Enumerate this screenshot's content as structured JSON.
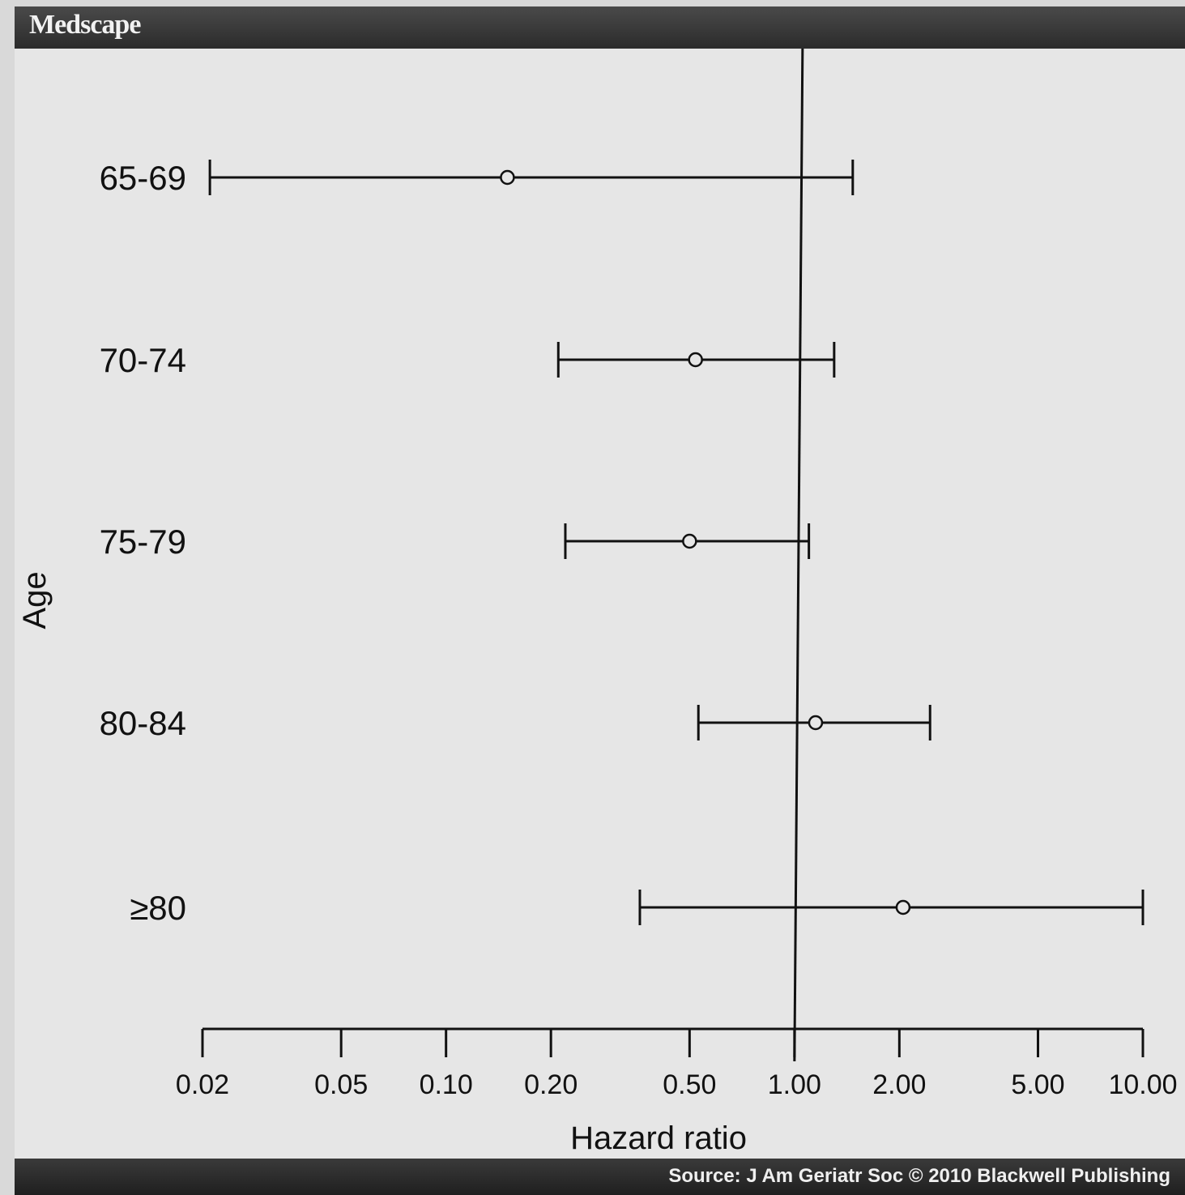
{
  "header": {
    "brand": "Medscape"
  },
  "footer": {
    "source": "Source: J Am Geriatr Soc © 2010 Blackwell Publishing"
  },
  "chart_data": {
    "type": "forest",
    "xlabel": "Hazard ratio",
    "ylabel": "Age",
    "x_scale": "log",
    "xlim": [
      0.02,
      10.0
    ],
    "reference_line": 1.0,
    "x_ticks": [
      0.02,
      0.05,
      0.1,
      0.2,
      0.5,
      1.0,
      2.0,
      5.0,
      10.0
    ],
    "x_tick_labels": [
      "0.02",
      "0.05",
      "0.10",
      "0.20",
      "0.50",
      "1.00",
      "2.00",
      "5.00",
      "10.00"
    ],
    "categories": [
      "65-69",
      "70-74",
      "75-79",
      "80-84",
      "≥80"
    ],
    "estimates": [
      0.15,
      0.52,
      0.5,
      1.15,
      2.05
    ],
    "lower": [
      0.021,
      0.21,
      0.22,
      0.53,
      0.36
    ],
    "upper": [
      1.47,
      1.3,
      1.1,
      2.45,
      10.0
    ],
    "grid": false
  }
}
